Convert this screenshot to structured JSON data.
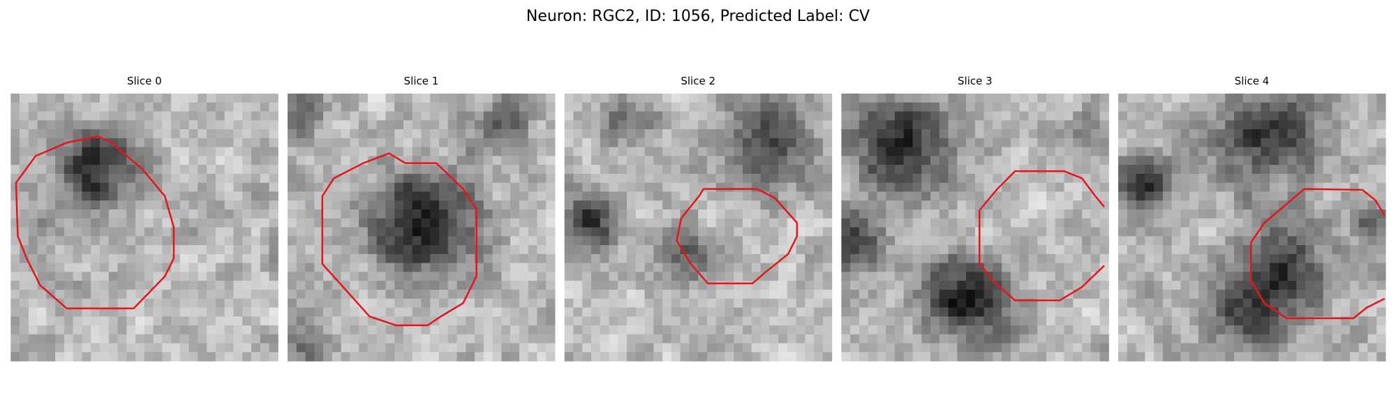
{
  "title": "Neuron: RGC2, ID: 1056, Predicted Label: CV",
  "panels": [
    {
      "title": "Slice 0"
    },
    {
      "title": "Slice 1"
    },
    {
      "title": "Slice 2"
    },
    {
      "title": "Slice 3"
    },
    {
      "title": "Slice 4"
    }
  ]
}
